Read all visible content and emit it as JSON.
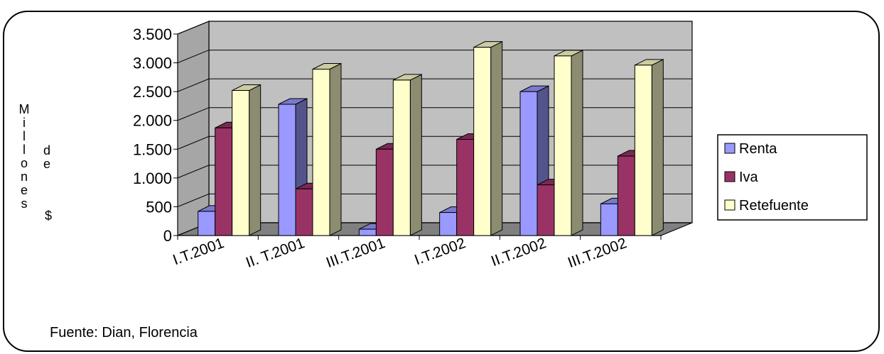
{
  "chart_data": {
    "type": "bar",
    "subtype": "3d-clustered-column",
    "categories": [
      "I.T.2001",
      "II. T.2001",
      "III.T.2001",
      "I.T.2002",
      "II.T.2002",
      "III.T.2002"
    ],
    "series": [
      {
        "name": "Renta",
        "values": [
          420,
          2280,
          110,
          400,
          2500,
          550
        ],
        "color": "#9999FF"
      },
      {
        "name": "Iva",
        "values": [
          1870,
          810,
          1500,
          1670,
          880,
          1380
        ],
        "color": "#993366"
      },
      {
        "name": "Retefuente",
        "values": [
          2520,
          2890,
          2700,
          3270,
          3120,
          2960
        ],
        "color": "#FFFFCC"
      }
    ],
    "ylabel": "Millones de $",
    "ylabel_words": [
      "Millones",
      "de",
      "$"
    ],
    "ylim": [
      0,
      3500
    ],
    "yticks": [
      0,
      500,
      1000,
      1500,
      2000,
      2500,
      3000,
      3500
    ],
    "ytick_labels": [
      "0",
      "500",
      "1.000",
      "1.500",
      "2.000",
      "2.500",
      "3.000",
      "3.500"
    ],
    "grid": true,
    "legend_position": "right",
    "wall_color": "#C0C0C0",
    "floor_color": "#808080",
    "source_note": "Fuente: Dian, Florencia"
  }
}
